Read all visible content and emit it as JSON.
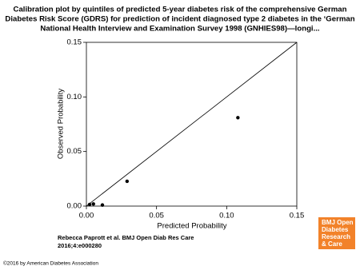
{
  "chart_data": {
    "type": "scatter",
    "title": [
      "Calibration plot by quintiles of predicted 5-year diabetes risk of the comprehensive German",
      "Diabetes Risk Score (GDRS) for prediction of incident diagnosed type 2 diabetes in the ‘German",
      "National Health Interview and Examination Survey 1998 (GNHIES98)—longi..."
    ],
    "x_label": "Predicted Probability",
    "y_label": "Observed Probability",
    "x": [
      0.0023,
      0.005,
      0.0114,
      0.029,
      0.108
    ],
    "values": [
      0.0015,
      0.002,
      0.001,
      0.0227,
      0.081
    ],
    "color": "#000000",
    "diagonal": true,
    "xlim": [
      0,
      0.15
    ],
    "ylim": [
      0,
      0.15
    ],
    "xticks": [
      {
        "value": 0,
        "label": "0.00"
      },
      0.05,
      {
        "value": 0.1,
        "label": "0.10"
      },
      {
        "value": 0.15,
        "label": "0.15"
      }
    ],
    "yticks": [
      {
        "value": 0,
        "label": "0.00"
      },
      0.05,
      {
        "value": 0.1,
        "label": "0.10"
      },
      {
        "value": 0.15,
        "label": "0.15"
      }
    ]
  },
  "citation": [
    "Rebecca Paprott et al. BMJ Open Diab Res Care",
    "2016;4:e000280"
  ],
  "copyright": "©2016 by American Diabetes Association",
  "logo": [
    "BMJ Open",
    "Diabetes",
    "Research",
    "& Care"
  ]
}
